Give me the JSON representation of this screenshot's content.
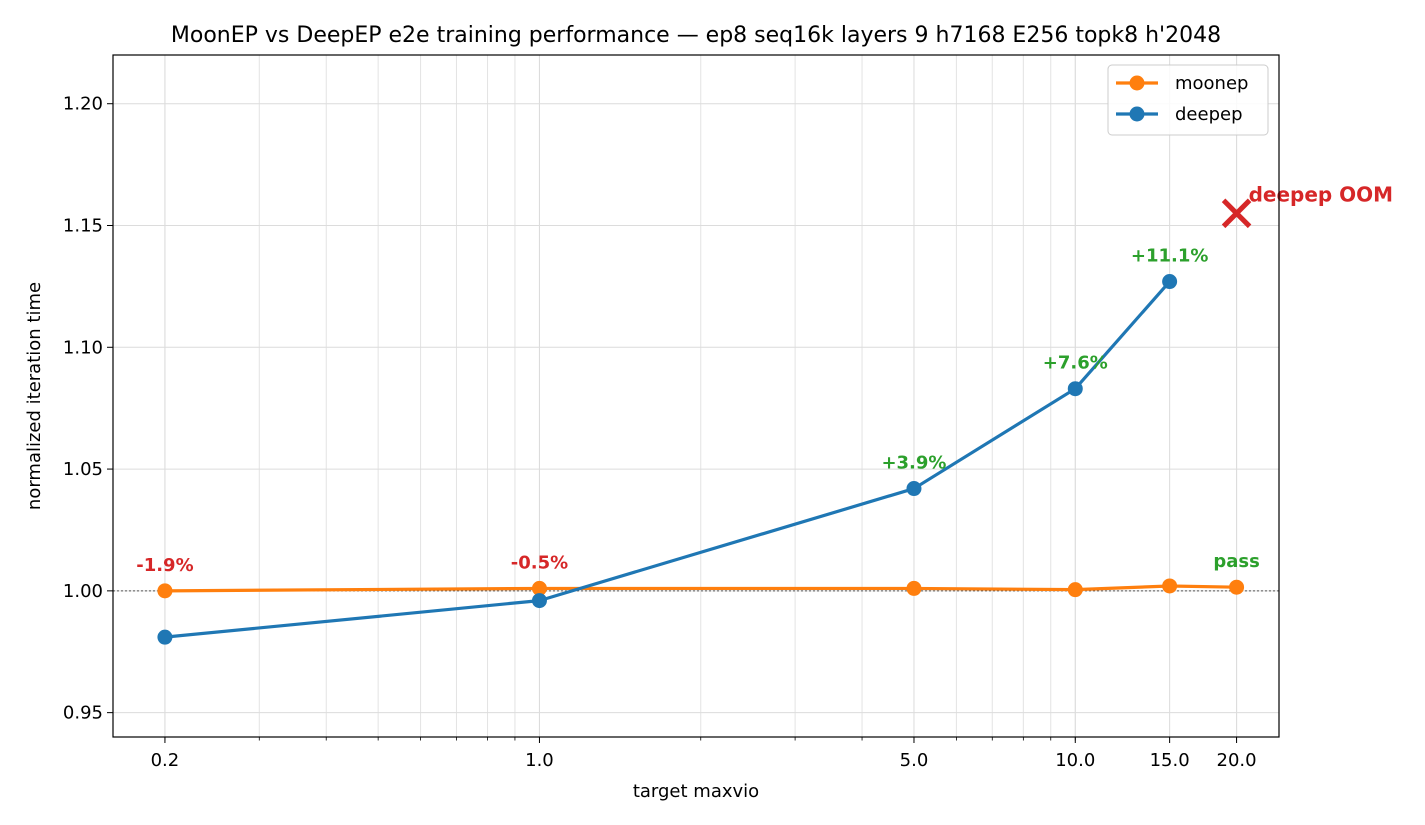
{
  "chart_data": {
    "type": "line",
    "title": "MoonEP vs DeepEP e2e training performance — ep8 seq16k layers 9 h7168 E256 topk8 h'2048",
    "xlabel": "target maxvio",
    "ylabel": "normalized iteration time",
    "xscale": "log",
    "xlim": [
      0.16,
      24
    ],
    "ylim": [
      0.94,
      1.22
    ],
    "x_ticks": [
      0.2,
      1.0,
      5.0,
      10.0,
      15.0,
      20.0
    ],
    "x_tick_labels": [
      "0.2",
      "1.0",
      "5.0",
      "10.0",
      "15.0",
      "20.0"
    ],
    "y_ticks": [
      0.95,
      1.0,
      1.05,
      1.1,
      1.15,
      1.2
    ],
    "y_tick_labels": [
      "0.95",
      "1.00",
      "1.05",
      "1.10",
      "1.15",
      "1.20"
    ],
    "grid": true,
    "reference_line": 1.0,
    "legend_position": "top-right",
    "series": [
      {
        "name": "moonep",
        "color": "#ff7f0e",
        "x": [
          0.2,
          1.0,
          5.0,
          10.0,
          15.0,
          20.0
        ],
        "y": [
          1.0,
          1.001,
          1.001,
          1.0005,
          1.002,
          1.0015
        ]
      },
      {
        "name": "deepep",
        "color": "#1f77b4",
        "x": [
          0.2,
          1.0,
          5.0,
          10.0,
          15.0
        ],
        "y": [
          0.981,
          0.996,
          1.042,
          1.083,
          1.127
        ]
      }
    ],
    "annotations": [
      {
        "text": "-1.9%",
        "x": 0.2,
        "y": 1.0,
        "color": "#d62728"
      },
      {
        "text": "-0.5%",
        "x": 1.0,
        "y": 1.001,
        "color": "#d62728"
      },
      {
        "text": "+3.9%",
        "x": 5.0,
        "y": 1.042,
        "color": "#2ca02c"
      },
      {
        "text": "+7.6%",
        "x": 10.0,
        "y": 1.083,
        "color": "#2ca02c"
      },
      {
        "text": "+11.1%",
        "x": 15.0,
        "y": 1.127,
        "color": "#2ca02c"
      },
      {
        "text": "pass",
        "x": 20.0,
        "y": 1.0015,
        "color": "#2ca02c"
      }
    ],
    "oom_marker": {
      "text": "deepep OOM",
      "x": 20.0,
      "y": 1.155,
      "color": "#d62728"
    }
  }
}
